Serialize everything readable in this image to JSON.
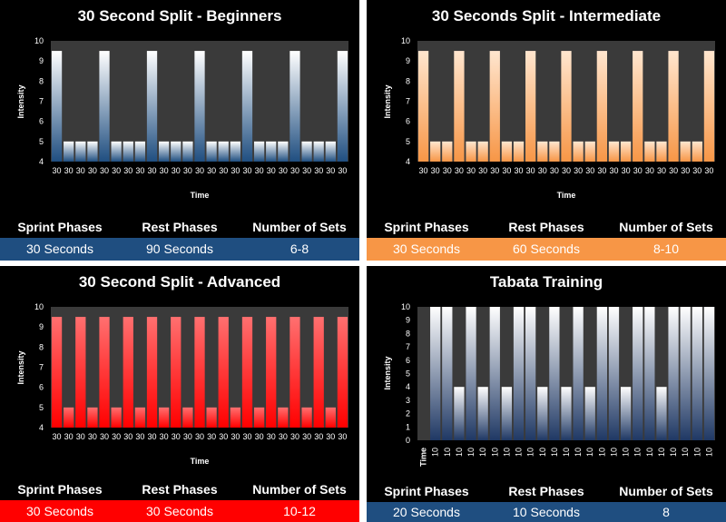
{
  "chart_data": [
    {
      "type": "bar",
      "title": "30 Second Split - Beginners",
      "xlabel": "Time",
      "ylabel": "Intensity",
      "ylim": [
        4,
        10
      ],
      "yticks": [
        4,
        5,
        6,
        7,
        8,
        9,
        10
      ],
      "categories": [
        "30",
        "30",
        "30",
        "30",
        "30",
        "30",
        "30",
        "30",
        "30",
        "30",
        "30",
        "30",
        "30",
        "30",
        "30",
        "30",
        "30",
        "30",
        "30",
        "30",
        "30",
        "30",
        "30",
        "30",
        "30"
      ],
      "values": [
        9.5,
        5,
        5,
        5,
        9.5,
        5,
        5,
        5,
        9.5,
        5,
        5,
        5,
        9.5,
        5,
        5,
        5,
        9.5,
        5,
        5,
        5,
        9.5,
        5,
        5,
        5,
        9.5
      ],
      "color": "#1f4e80"
    },
    {
      "type": "bar",
      "title": "30 Seconds Split - Intermediate",
      "xlabel": "Time",
      "ylabel": "Intensity",
      "ylim": [
        4,
        10
      ],
      "yticks": [
        4,
        5,
        6,
        7,
        8,
        9,
        10
      ],
      "categories": [
        "30",
        "30",
        "30",
        "30",
        "30",
        "30",
        "30",
        "30",
        "30",
        "30",
        "30",
        "30",
        "30",
        "30",
        "30",
        "30",
        "30",
        "30",
        "30",
        "30",
        "30",
        "30",
        "30",
        "30",
        "30"
      ],
      "values": [
        9.5,
        5,
        5,
        9.5,
        5,
        5,
        9.5,
        5,
        5,
        9.5,
        5,
        5,
        9.5,
        5,
        5,
        9.5,
        5,
        5,
        9.5,
        5,
        5,
        9.5,
        5,
        5,
        9.5
      ],
      "color": "#f79646"
    },
    {
      "type": "bar",
      "title": "30 Second Split - Advanced",
      "xlabel": "Time",
      "ylabel": "Intensity",
      "ylim": [
        4,
        10
      ],
      "yticks": [
        4,
        5,
        6,
        7,
        8,
        9,
        10
      ],
      "categories": [
        "30",
        "30",
        "30",
        "30",
        "30",
        "30",
        "30",
        "30",
        "30",
        "30",
        "30",
        "30",
        "30",
        "30",
        "30",
        "30",
        "30",
        "30",
        "30",
        "30",
        "30",
        "30",
        "30",
        "30",
        "30"
      ],
      "values": [
        9.5,
        5,
        9.5,
        5,
        9.5,
        5,
        9.5,
        5,
        9.5,
        5,
        9.5,
        5,
        9.5,
        5,
        9.5,
        5,
        9.5,
        5,
        9.5,
        5,
        9.5,
        5,
        9.5,
        5,
        9.5
      ],
      "color": "#ff0000"
    },
    {
      "type": "bar",
      "title": "Tabata Training",
      "xlabel": "Time",
      "ylabel": "Intensity",
      "ylim": [
        0,
        10
      ],
      "yticks": [
        0,
        1,
        2,
        3,
        4,
        5,
        6,
        7,
        8,
        9,
        10
      ],
      "categories": [
        "10",
        "10",
        "10",
        "10",
        "10",
        "10",
        "10",
        "10",
        "10",
        "10",
        "10",
        "10",
        "10",
        "10",
        "10",
        "10",
        "10",
        "10",
        "10",
        "10",
        "10",
        "10",
        "10",
        "10"
      ],
      "values": [
        10,
        10,
        4,
        10,
        4,
        10,
        4,
        10,
        10,
        4,
        10,
        4,
        10,
        4,
        10,
        10,
        4,
        10,
        10,
        4,
        10,
        10,
        10,
        10
      ],
      "color": "#1f3864"
    }
  ],
  "info_tables": [
    {
      "headers": [
        "Sprint Phases",
        "Rest Phases",
        "Number of Sets"
      ],
      "values": [
        "30 Seconds",
        "90 Seconds",
        "6-8"
      ],
      "row_color": "#1f4e80",
      "text_color": "#ffffff"
    },
    {
      "headers": [
        "Sprint Phases",
        "Rest Phases",
        "Number of Sets"
      ],
      "values": [
        "30 Seconds",
        "60 Seconds",
        "8-10"
      ],
      "row_color": "#f79646",
      "text_color": "#ffffff"
    },
    {
      "headers": [
        "Sprint Phases",
        "Rest Phases",
        "Number of Sets"
      ],
      "values": [
        "30 Seconds",
        "30 Seconds",
        "10-12"
      ],
      "row_color": "#ff0000",
      "text_color": "#ffffff"
    },
    {
      "headers": [
        "Sprint Phases",
        "Rest Phases",
        "Number of Sets"
      ],
      "values": [
        "20 Seconds",
        "10 Seconds",
        "8"
      ],
      "row_color": "#1f4e80",
      "text_color": "#ffffff"
    }
  ]
}
